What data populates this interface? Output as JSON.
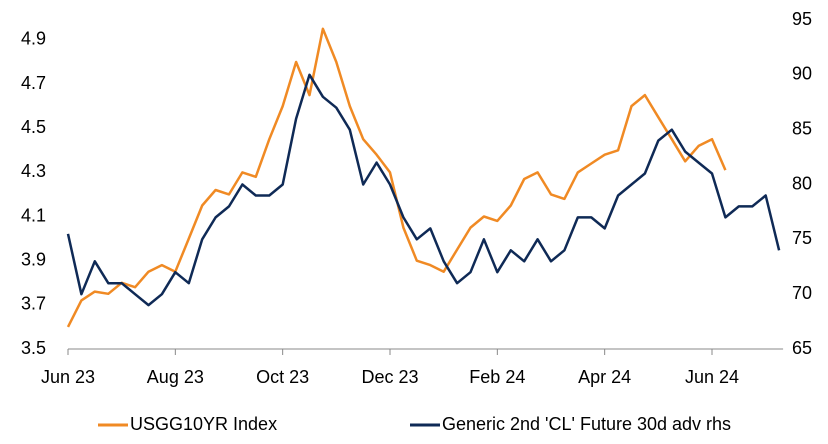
{
  "chart_data": {
    "type": "line",
    "categories": [
      "Jun 23",
      null,
      null,
      null,
      null,
      null,
      null,
      null,
      "Aug 23",
      null,
      null,
      null,
      null,
      null,
      null,
      null,
      "Oct 23",
      null,
      null,
      null,
      null,
      null,
      null,
      null,
      "Dec 23",
      null,
      null,
      null,
      null,
      null,
      null,
      null,
      "Feb 24",
      null,
      null,
      null,
      null,
      null,
      null,
      null,
      "Apr 24",
      null,
      null,
      null,
      null,
      null,
      null,
      null,
      "Jun 24",
      null,
      null,
      null,
      null,
      null
    ],
    "series": [
      {
        "name": "USGG10YR Index",
        "color": "#f08a24",
        "values": [
          3.6,
          3.72,
          3.76,
          3.75,
          3.8,
          3.78,
          3.85,
          3.88,
          3.85,
          4.0,
          4.15,
          4.22,
          4.2,
          4.3,
          4.28,
          4.45,
          4.6,
          4.8,
          4.65,
          4.95,
          4.8,
          4.6,
          4.45,
          4.38,
          4.3,
          4.05,
          3.9,
          3.88,
          3.85,
          3.95,
          4.05,
          4.1,
          4.08,
          4.15,
          4.27,
          4.3,
          4.2,
          4.18,
          4.3,
          4.34,
          4.38,
          4.4,
          4.6,
          4.65,
          4.55,
          4.45,
          4.35,
          4.42,
          4.45,
          4.31,
          null,
          null,
          null,
          null
        ]
      },
      {
        "name": "Generic 2nd 'CL' Future 30d adv rhs",
        "color": "#0f2a56",
        "axis": "y2",
        "values": [
          75.5,
          70,
          73,
          71,
          71,
          70,
          69,
          70,
          72,
          71,
          75,
          77,
          78,
          80,
          79,
          79,
          80,
          86,
          90,
          88,
          87,
          85,
          80,
          82,
          80,
          77,
          75,
          76,
          73,
          71,
          72,
          75,
          72,
          74,
          73,
          75,
          73,
          74,
          77,
          77,
          76,
          79,
          80,
          81,
          84,
          85,
          83,
          82,
          81,
          77,
          78,
          78,
          79,
          74
        ]
      }
    ],
    "ylim": [
      3.5,
      4.99
    ],
    "yticks": [
      3.5,
      3.7,
      3.9,
      4.1,
      4.3,
      4.5,
      4.7,
      4.9
    ],
    "y2lim": [
      65,
      95
    ],
    "y2ticks": [
      65,
      70,
      75,
      80,
      85,
      90,
      95
    ],
    "grid": false,
    "legend": "bottom"
  }
}
